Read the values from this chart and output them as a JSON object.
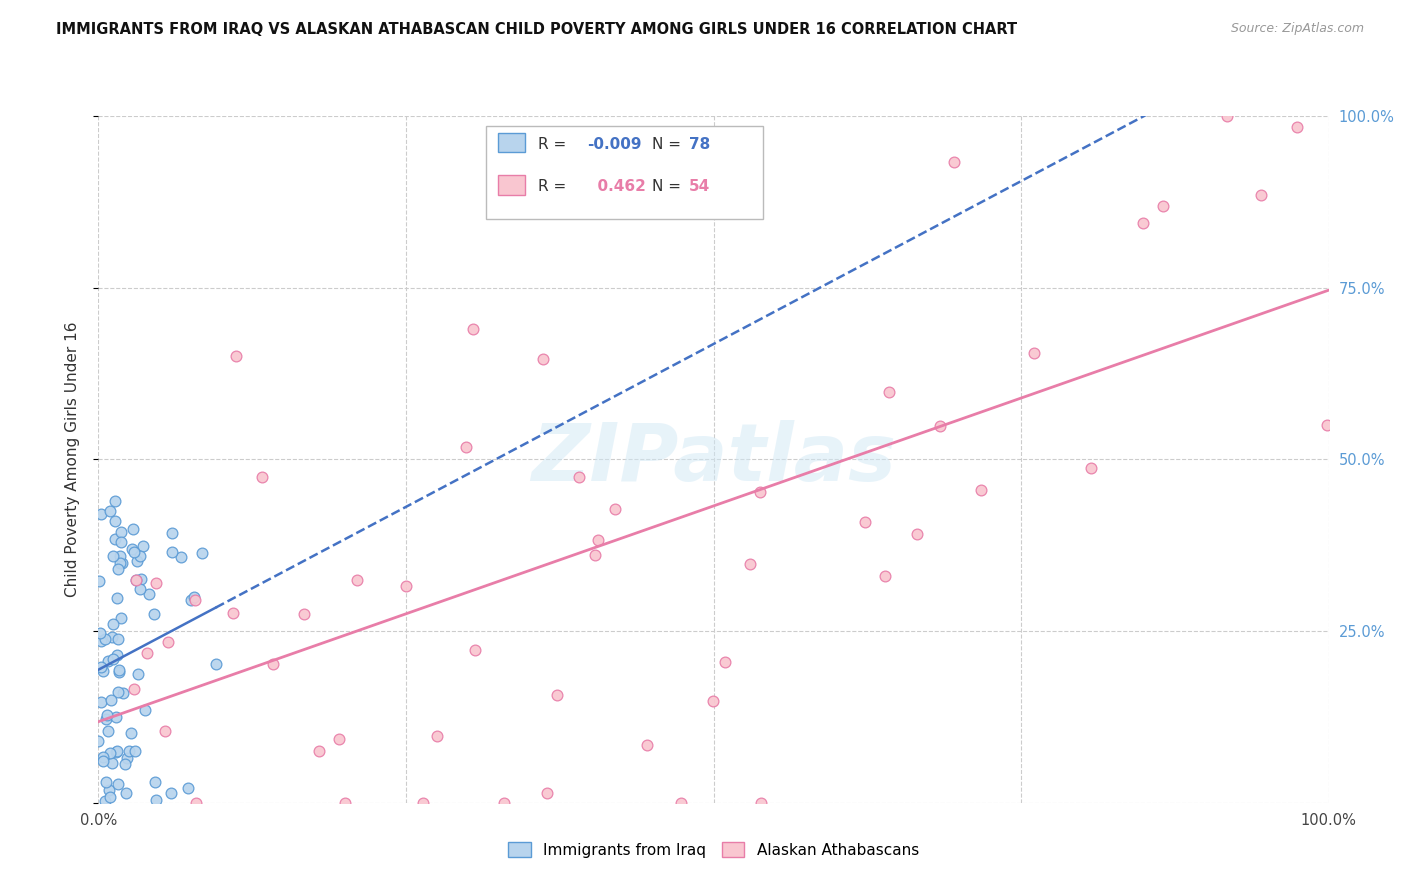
{
  "title": "IMMIGRANTS FROM IRAQ VS ALASKAN ATHABASCAN CHILD POVERTY AMONG GIRLS UNDER 16 CORRELATION CHART",
  "source": "Source: ZipAtlas.com",
  "ylabel": "Child Poverty Among Girls Under 16",
  "background_color": "#ffffff",
  "grid_color": "#cccccc",
  "watermark_text": "ZIPatlas",
  "series0_name": "Immigrants from Iraq",
  "series0_R": -0.009,
  "series0_N": 78,
  "series0_fill": "#b8d4ed",
  "series0_edge": "#5b9bd5",
  "series0_line": "#4472c4",
  "series1_name": "Alaskan Athabascans",
  "series1_R": 0.462,
  "series1_N": 54,
  "series1_fill": "#f9c6d0",
  "series1_edge": "#e87da8",
  "series1_line": "#e87da8",
  "right_tick_color": "#5b9bd5",
  "legend_R0_color": "#4472c4",
  "legend_N0_color": "#4472c4",
  "legend_R1_color": "#e87da8",
  "legend_N1_color": "#e87da8"
}
